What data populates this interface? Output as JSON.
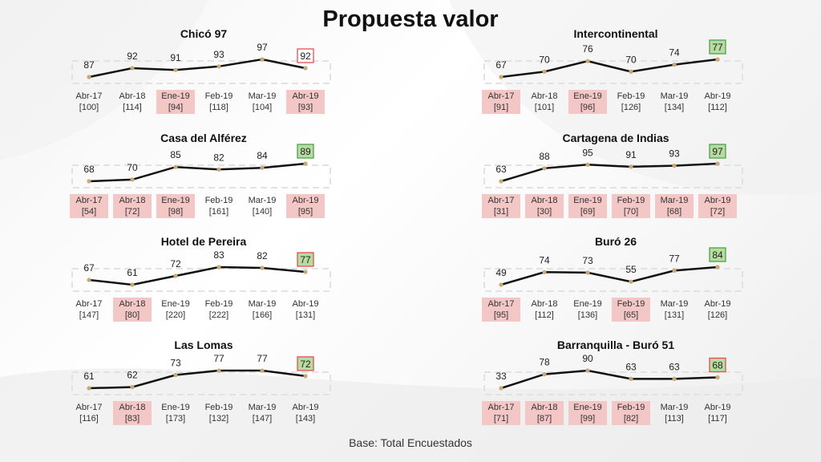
{
  "title": "Propuesta valor",
  "footer": "Base: Total Encuestados",
  "colors": {
    "line": "#111111",
    "marker": "#c8a874",
    "highlight": "#f4c7c7",
    "good": "#b6dca0",
    "bad_border": "#e05050",
    "good_border": "#4aa34a"
  },
  "chart_data": [
    {
      "type": "line",
      "title": "Chicó 97",
      "categories": [
        "Abr-17",
        "Abr-18",
        "Ene-19",
        "Feb-19",
        "Mar-19",
        "Abr-19"
      ],
      "bases": [
        "[100]",
        "[114]",
        "[94]",
        "[118]",
        "[104]",
        "[93]"
      ],
      "values": [
        87,
        92,
        91,
        93,
        97,
        92
      ],
      "highlight": [
        false,
        false,
        true,
        false,
        false,
        true
      ],
      "last_box": "red"
    },
    {
      "type": "line",
      "title": "Intercontinental",
      "categories": [
        "Abr-17",
        "Abr-18",
        "Ene-19",
        "Feb-19",
        "Mar-19",
        "Abr-19"
      ],
      "bases": [
        "[91]",
        "[101]",
        "[96]",
        "[126]",
        "[134]",
        "[112]"
      ],
      "values": [
        67,
        70,
        76,
        70,
        74,
        77
      ],
      "highlight": [
        true,
        false,
        true,
        false,
        false,
        false
      ],
      "last_box": "green"
    },
    {
      "type": "line",
      "title": "Casa del Alférez",
      "categories": [
        "Abr-17",
        "Abr-18",
        "Ene-19",
        "Feb-19",
        "Mar-19",
        "Abr-19"
      ],
      "bases": [
        "[54]",
        "[72]",
        "[98]",
        "[161]",
        "[140]",
        "[95]"
      ],
      "values": [
        68,
        70,
        85,
        82,
        84,
        89
      ],
      "highlight": [
        true,
        true,
        true,
        false,
        false,
        true
      ],
      "last_box": "green"
    },
    {
      "type": "line",
      "title": "Cartagena de Indias",
      "categories": [
        "Abr-17",
        "Abr-18",
        "Ene-19",
        "Feb-19",
        "Mar-19",
        "Abr-19"
      ],
      "bases": [
        "[31]",
        "[30]",
        "[69]",
        "[70]",
        "[68]",
        "[72]"
      ],
      "values": [
        63,
        88,
        95,
        91,
        93,
        97
      ],
      "highlight": [
        true,
        true,
        true,
        true,
        true,
        true
      ],
      "last_box": "green"
    },
    {
      "type": "line",
      "title": "Hotel de Pereira",
      "categories": [
        "Abr-17",
        "Abr-18",
        "Ene-19",
        "Feb-19",
        "Mar-19",
        "Abr-19"
      ],
      "bases": [
        "[147]",
        "[80]",
        "[220]",
        "[222]",
        "[166]",
        "[131]"
      ],
      "values": [
        67,
        61,
        72,
        83,
        82,
        77
      ],
      "highlight": [
        false,
        true,
        false,
        false,
        false,
        false
      ],
      "last_box": "mixed"
    },
    {
      "type": "line",
      "title": "Buró 26",
      "categories": [
        "Abr-17",
        "Abr-18",
        "Ene-19",
        "Feb-19",
        "Mar-19",
        "Abr-19"
      ],
      "bases": [
        "[95]",
        "[112]",
        "[136]",
        "[65]",
        "[131]",
        "[126]"
      ],
      "values": [
        49,
        74,
        73,
        55,
        77,
        84
      ],
      "highlight": [
        true,
        false,
        false,
        true,
        false,
        false
      ],
      "last_box": "green"
    },
    {
      "type": "line",
      "title": "Las Lomas",
      "categories": [
        "Abr-17",
        "Abr-18",
        "Ene-19",
        "Feb-19",
        "Mar-19",
        "Abr-19"
      ],
      "bases": [
        "[116]",
        "[83]",
        "[173]",
        "[132]",
        "[147]",
        "[143]"
      ],
      "values": [
        61,
        62,
        73,
        77,
        77,
        72
      ],
      "highlight": [
        false,
        true,
        false,
        false,
        false,
        false
      ],
      "last_box": "mixed"
    },
    {
      "type": "line",
      "title": "Barranquilla - Buró 51",
      "categories": [
        "Abr-17",
        "Abr-18",
        "Ene-19",
        "Feb-19",
        "Mar-19",
        "Abr-19"
      ],
      "bases": [
        "[71]",
        "[87]",
        "[99]",
        "[82]",
        "[113]",
        "[117]"
      ],
      "values": [
        33,
        78,
        90,
        63,
        63,
        68
      ],
      "highlight": [
        true,
        true,
        true,
        true,
        false,
        false
      ],
      "last_box": "mixed"
    }
  ]
}
